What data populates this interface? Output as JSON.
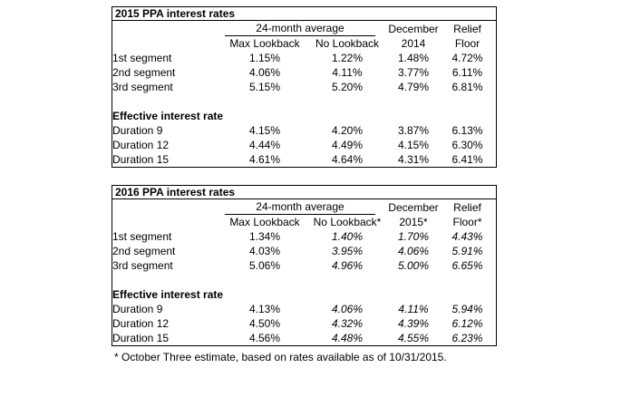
{
  "page": {
    "background": "#ffffff",
    "text_color": "#000000"
  },
  "tables": [
    {
      "title": "2015 PPA interest rates",
      "header": {
        "group": "24-month average",
        "columns": [
          "Max Lookback",
          "No Lookback"
        ],
        "december_line1": "December",
        "december_line2": "2014",
        "relief_line1": "Relief",
        "relief_line2": "Floor"
      },
      "italic_value_cols": [],
      "rows": [
        {
          "type": "data",
          "label": "1st segment",
          "values": [
            "1.15%",
            "1.22%",
            "1.48%",
            "4.72%"
          ]
        },
        {
          "type": "data",
          "label": "2nd segment",
          "values": [
            "4.06%",
            "4.11%",
            "3.77%",
            "6.11%"
          ]
        },
        {
          "type": "data",
          "label": "3rd segment",
          "values": [
            "5.15%",
            "5.20%",
            "4.79%",
            "6.81%"
          ]
        },
        {
          "type": "spacer",
          "label": "",
          "values": [
            "",
            "",
            "",
            ""
          ]
        },
        {
          "type": "section",
          "label": "Effective interest rate",
          "values": [
            "",
            "",
            "",
            ""
          ]
        },
        {
          "type": "data",
          "label": "Duration 9",
          "values": [
            "4.15%",
            "4.20%",
            "3.87%",
            "6.13%"
          ]
        },
        {
          "type": "data",
          "label": "Duration 12",
          "values": [
            "4.44%",
            "4.49%",
            "4.15%",
            "6.30%"
          ]
        },
        {
          "type": "data",
          "label": "Duration 15",
          "values": [
            "4.61%",
            "4.64%",
            "4.31%",
            "6.41%"
          ]
        }
      ]
    },
    {
      "title": "2016 PPA interest rates",
      "header": {
        "group": "24-month average",
        "columns": [
          "Max Lookback",
          "No Lookback*"
        ],
        "december_line1": "December",
        "december_line2": "2015*",
        "relief_line1": "Relief",
        "relief_line2": "Floor*"
      },
      "italic_value_cols": [
        1,
        2,
        3
      ],
      "rows": [
        {
          "type": "data",
          "label": "1st segment",
          "values": [
            "1.34%",
            "1.40%",
            "1.70%",
            "4.43%"
          ]
        },
        {
          "type": "data",
          "label": "2nd segment",
          "values": [
            "4.03%",
            "3.95%",
            "4.06%",
            "5.91%"
          ]
        },
        {
          "type": "data",
          "label": "3rd segment",
          "values": [
            "5.06%",
            "4.96%",
            "5.00%",
            "6.65%"
          ]
        },
        {
          "type": "spacer",
          "label": "",
          "values": [
            "",
            "",
            "",
            ""
          ]
        },
        {
          "type": "section",
          "label": "Effective interest rate",
          "values": [
            "",
            "",
            "",
            ""
          ]
        },
        {
          "type": "data",
          "label": "Duration 9",
          "values": [
            "4.13%",
            "4.06%",
            "4.11%",
            "5.94%"
          ]
        },
        {
          "type": "data",
          "label": "Duration 12",
          "values": [
            "4.50%",
            "4.32%",
            "4.39%",
            "6.12%"
          ]
        },
        {
          "type": "data",
          "label": "Duration 15",
          "values": [
            "4.56%",
            "4.48%",
            "4.55%",
            "6.23%"
          ]
        }
      ]
    }
  ],
  "footnote": "* October Three estimate, based on rates available as of 10/31/2015."
}
